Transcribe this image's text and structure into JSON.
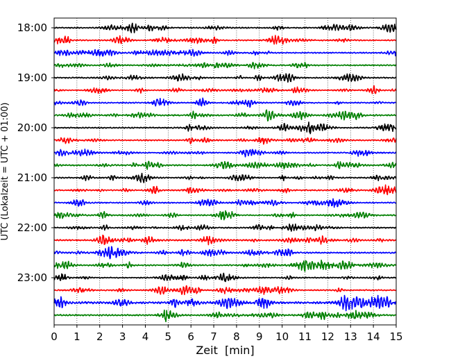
{
  "chart_data": {
    "type": "line",
    "title": "",
    "xlabel": "Zeit  [min]",
    "ylabel": "UTC (Lokalzeit = UTC + 01:00)",
    "xlim": [
      0,
      15
    ],
    "x_ticks": [
      "0",
      "1",
      "2",
      "3",
      "4",
      "5",
      "6",
      "7",
      "8",
      "9",
      "10",
      "11",
      "12",
      "13",
      "14",
      "15"
    ],
    "y_ticks": [
      "18:00",
      "19:00",
      "20:00",
      "21:00",
      "22:00",
      "23:00"
    ],
    "grid": "vertical dotted",
    "trace_colors": [
      "#000000",
      "#ff0000",
      "#0000ff",
      "#008000"
    ],
    "traces": [
      {
        "start": "18:00",
        "amplitude": 0.25
      },
      {
        "start": "18:15",
        "amplitude": 0.25
      },
      {
        "start": "18:30",
        "amplitude": 0.25
      },
      {
        "start": "18:45",
        "amplitude": 0.25
      },
      {
        "start": "19:00",
        "amplitude": 0.25
      },
      {
        "start": "19:15",
        "amplitude": 0.22
      },
      {
        "start": "19:30",
        "amplitude": 0.25
      },
      {
        "start": "19:45",
        "amplitude": 0.3
      },
      {
        "start": "20:00",
        "amplitude": 0.25
      },
      {
        "start": "20:15",
        "amplitude": 0.25
      },
      {
        "start": "20:30",
        "amplitude": 0.25
      },
      {
        "start": "20:45",
        "amplitude": 0.28
      },
      {
        "start": "21:00",
        "amplitude": 0.25
      },
      {
        "start": "21:15",
        "amplitude": 0.25
      },
      {
        "start": "21:30",
        "amplitude": 0.25
      },
      {
        "start": "21:45",
        "amplitude": 0.25
      },
      {
        "start": "22:00",
        "amplitude": 0.25
      },
      {
        "start": "22:15",
        "amplitude": 0.3
      },
      {
        "start": "22:30",
        "amplitude": 0.3
      },
      {
        "start": "22:45",
        "amplitude": 0.28
      },
      {
        "start": "23:00",
        "amplitude": 0.22
      },
      {
        "start": "23:15",
        "amplitude": 0.25
      },
      {
        "start": "23:30",
        "amplitude": 0.45
      },
      {
        "start": "23:45",
        "amplitude": 0.3
      }
    ]
  }
}
